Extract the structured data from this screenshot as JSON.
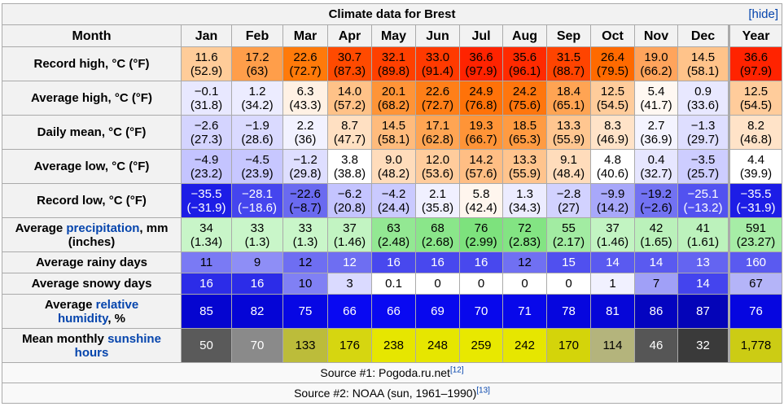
{
  "title": "Climate data for Brest",
  "hide_label": "[hide]",
  "hide_bracket_open": "[",
  "hide_text": "hide",
  "hide_bracket_close": "]",
  "header": {
    "month_label": "Month",
    "months": [
      "Jan",
      "Feb",
      "Mar",
      "Apr",
      "May",
      "Jun",
      "Jul",
      "Aug",
      "Sep",
      "Oct",
      "Nov",
      "Dec"
    ],
    "year_label": "Year"
  },
  "rows": {
    "record_high": {
      "label": "Record high, °C (°F)",
      "values": [
        {
          "c": "11.6",
          "f": "(52.9)",
          "bg": "#ffcc99",
          "fg": "#000000"
        },
        {
          "c": "17.2",
          "f": "(63)",
          "bg": "#ff9e4a",
          "fg": "#000000"
        },
        {
          "c": "22.6",
          "f": "(72.7)",
          "bg": "#ff7a0a",
          "fg": "#000000"
        },
        {
          "c": "30.7",
          "f": "(87.3)",
          "bg": "#ff4a00",
          "fg": "#000000"
        },
        {
          "c": "32.1",
          "f": "(89.8)",
          "bg": "#ff4000",
          "fg": "#000000"
        },
        {
          "c": "33.0",
          "f": "(91.4)",
          "bg": "#ff3a00",
          "fg": "#000000"
        },
        {
          "c": "36.6",
          "f": "(97.9)",
          "bg": "#ff2300",
          "fg": "#000000"
        },
        {
          "c": "35.6",
          "f": "(96.1)",
          "bg": "#ff2a00",
          "fg": "#000000"
        },
        {
          "c": "31.5",
          "f": "(88.7)",
          "bg": "#ff4400",
          "fg": "#000000"
        },
        {
          "c": "26.4",
          "f": "(79.5)",
          "bg": "#ff6a00",
          "fg": "#000000"
        },
        {
          "c": "19.0",
          "f": "(66.2)",
          "bg": "#ffa45c",
          "fg": "#000000"
        },
        {
          "c": "14.5",
          "f": "(58.1)",
          "bg": "#ffc38a",
          "fg": "#000000"
        }
      ],
      "year": {
        "c": "36.6",
        "f": "(97.9)",
        "bg": "#ff2300",
        "fg": "#000000"
      }
    },
    "average_high": {
      "label": "Average high, °C (°F)",
      "values": [
        {
          "c": "−0.1",
          "f": "(31.8)",
          "bg": "#e8e8ff",
          "fg": "#000000"
        },
        {
          "c": "1.2",
          "f": "(34.2)",
          "bg": "#ececff",
          "fg": "#000000"
        },
        {
          "c": "6.3",
          "f": "(43.3)",
          "bg": "#fff1e4",
          "fg": "#000000"
        },
        {
          "c": "14.0",
          "f": "(57.2)",
          "bg": "#ffc288",
          "fg": "#000000"
        },
        {
          "c": "20.1",
          "f": "(68.2)",
          "bg": "#ff9437",
          "fg": "#000000"
        },
        {
          "c": "22.6",
          "f": "(72.7)",
          "bg": "#ff7f18",
          "fg": "#000000"
        },
        {
          "c": "24.9",
          "f": "(76.8)",
          "bg": "#ff7209",
          "fg": "#000000"
        },
        {
          "c": "24.2",
          "f": "(75.6)",
          "bg": "#ff760e",
          "fg": "#000000"
        },
        {
          "c": "18.4",
          "f": "(65.1)",
          "bg": "#ffa453",
          "fg": "#000000"
        },
        {
          "c": "12.5",
          "f": "(54.5)",
          "bg": "#ffcc9b",
          "fg": "#000000"
        },
        {
          "c": "5.4",
          "f": "(41.7)",
          "bg": "#fff8f2",
          "fg": "#000000"
        },
        {
          "c": "0.9",
          "f": "(33.6)",
          "bg": "#e8e8ff",
          "fg": "#000000"
        }
      ],
      "year": {
        "c": "12.5",
        "f": "(54.5)",
        "bg": "#ffcc9b",
        "fg": "#000000"
      }
    },
    "daily_mean": {
      "label": "Daily mean, °C (°F)",
      "values": [
        {
          "c": "−2.6",
          "f": "(27.3)",
          "bg": "#d4d4ff",
          "fg": "#000000"
        },
        {
          "c": "−1.9",
          "f": "(28.6)",
          "bg": "#dadaff",
          "fg": "#000000"
        },
        {
          "c": "2.2",
          "f": "(36)",
          "bg": "#f2f2ff",
          "fg": "#000000"
        },
        {
          "c": "8.7",
          "f": "(47.7)",
          "bg": "#ffe0c2",
          "fg": "#000000"
        },
        {
          "c": "14.5",
          "f": "(58.1)",
          "bg": "#ffbb7c",
          "fg": "#000000"
        },
        {
          "c": "17.1",
          "f": "(62.8)",
          "bg": "#ffa553",
          "fg": "#000000"
        },
        {
          "c": "19.3",
          "f": "(66.7)",
          "bg": "#ff9437",
          "fg": "#000000"
        },
        {
          "c": "18.5",
          "f": "(65.3)",
          "bg": "#ff9b42",
          "fg": "#000000"
        },
        {
          "c": "13.3",
          "f": "(55.9)",
          "bg": "#ffc690",
          "fg": "#000000"
        },
        {
          "c": "8.3",
          "f": "(46.9)",
          "bg": "#ffe3c8",
          "fg": "#000000"
        },
        {
          "c": "2.7",
          "f": "(36.9)",
          "bg": "#f4f4ff",
          "fg": "#000000"
        },
        {
          "c": "−1.3",
          "f": "(29.7)",
          "bg": "#dedeff",
          "fg": "#000000"
        }
      ],
      "year": {
        "c": "8.2",
        "f": "(46.8)",
        "bg": "#ffe3c8",
        "fg": "#000000"
      }
    },
    "average_low": {
      "label": "Average low, °C (°F)",
      "values": [
        {
          "c": "−4.9",
          "f": "(23.2)",
          "bg": "#c4c4ff",
          "fg": "#000000"
        },
        {
          "c": "−4.5",
          "f": "(23.9)",
          "bg": "#c7c7ff",
          "fg": "#000000"
        },
        {
          "c": "−1.2",
          "f": "(29.8)",
          "bg": "#dedeff",
          "fg": "#000000"
        },
        {
          "c": "3.8",
          "f": "(38.8)",
          "bg": "#ffffff",
          "fg": "#000000"
        },
        {
          "c": "9.0",
          "f": "(48.2)",
          "bg": "#ffdcbb",
          "fg": "#000000"
        },
        {
          "c": "12.0",
          "f": "(53.6)",
          "bg": "#ffcc9c",
          "fg": "#000000"
        },
        {
          "c": "14.2",
          "f": "(57.6)",
          "bg": "#ffbe84",
          "fg": "#000000"
        },
        {
          "c": "13.3",
          "f": "(55.9)",
          "bg": "#ffc48d",
          "fg": "#000000"
        },
        {
          "c": "9.1",
          "f": "(48.4)",
          "bg": "#ffdcbb",
          "fg": "#000000"
        },
        {
          "c": "4.8",
          "f": "(40.6)",
          "bg": "#ffffff",
          "fg": "#000000"
        },
        {
          "c": "0.4",
          "f": "(32.7)",
          "bg": "#e6e6ff",
          "fg": "#000000"
        },
        {
          "c": "−3.5",
          "f": "(25.7)",
          "bg": "#cdcdff",
          "fg": "#000000"
        }
      ],
      "year": {
        "c": "4.4",
        "f": "(39.9)",
        "bg": "#ffffff",
        "fg": "#000000"
      }
    },
    "record_low": {
      "label": "Record low, °C (°F)",
      "values": [
        {
          "c": "−35.5",
          "f": "(−31.9)",
          "bg": "#1d1de6",
          "fg": "#ffffff"
        },
        {
          "c": "−28.1",
          "f": "(−18.6)",
          "bg": "#4545ee",
          "fg": "#ffffff"
        },
        {
          "c": "−22.6",
          "f": "(−8.7)",
          "bg": "#6a6af0",
          "fg": "#000000"
        },
        {
          "c": "−6.2",
          "f": "(20.8)",
          "bg": "#c4c4ff",
          "fg": "#000000"
        },
        {
          "c": "−4.2",
          "f": "(24.4)",
          "bg": "#cacaff",
          "fg": "#000000"
        },
        {
          "c": "2.1",
          "f": "(35.8)",
          "bg": "#f0f0ff",
          "fg": "#000000"
        },
        {
          "c": "5.8",
          "f": "(42.4)",
          "bg": "#fff6ee",
          "fg": "#000000"
        },
        {
          "c": "1.3",
          "f": "(34.3)",
          "bg": "#ececff",
          "fg": "#000000"
        },
        {
          "c": "−2.8",
          "f": "(27)",
          "bg": "#d2d2ff",
          "fg": "#000000"
        },
        {
          "c": "−9.9",
          "f": "(14.2)",
          "bg": "#a8a8fa",
          "fg": "#000000"
        },
        {
          "c": "−19.2",
          "f": "(−2.6)",
          "bg": "#7272f2",
          "fg": "#000000"
        },
        {
          "c": "−25.1",
          "f": "(−13.2)",
          "bg": "#5252f0",
          "fg": "#ffffff"
        }
      ],
      "year": {
        "c": "−35.5",
        "f": "(−31.9)",
        "bg": "#1d1de6",
        "fg": "#ffffff"
      }
    },
    "precipitation": {
      "label_prefix": "Average ",
      "label_link": "precipitation",
      "label_suffix": ", mm",
      "label_line2": "(inches)",
      "values": [
        {
          "mm": "34",
          "in": "(1.34)",
          "bg": "#c8f5c8"
        },
        {
          "mm": "33",
          "in": "(1.3)",
          "bg": "#c9f6c9"
        },
        {
          "mm": "33",
          "in": "(1.3)",
          "bg": "#c9f6c9"
        },
        {
          "mm": "37",
          "in": "(1.46)",
          "bg": "#c2f4c2"
        },
        {
          "mm": "63",
          "in": "(2.48)",
          "bg": "#93e893"
        },
        {
          "mm": "68",
          "in": "(2.68)",
          "bg": "#8ae68a"
        },
        {
          "mm": "76",
          "in": "(2.99)",
          "bg": "#7de27d"
        },
        {
          "mm": "72",
          "in": "(2.83)",
          "bg": "#83e483"
        },
        {
          "mm": "55",
          "in": "(2.17)",
          "bg": "#a2eca2"
        },
        {
          "mm": "37",
          "in": "(1.46)",
          "bg": "#c2f4c2"
        },
        {
          "mm": "42",
          "in": "(1.65)",
          "bg": "#baf1ba"
        },
        {
          "mm": "41",
          "in": "(1.61)",
          "bg": "#bcf2bc"
        }
      ],
      "year": {
        "mm": "591",
        "in": "(23.27)",
        "bg": "#a6eda6"
      }
    },
    "rainy_days": {
      "label": "Average rainy days",
      "values": [
        {
          "v": "11",
          "bg": "#7a7af4",
          "fg": "#000000"
        },
        {
          "v": "9",
          "bg": "#8e8ef6",
          "fg": "#000000"
        },
        {
          "v": "12",
          "bg": "#6e6ef2",
          "fg": "#000000"
        },
        {
          "v": "12",
          "bg": "#6e6ef2",
          "fg": "#ffffff"
        },
        {
          "v": "16",
          "bg": "#4848ee",
          "fg": "#ffffff"
        },
        {
          "v": "16",
          "bg": "#4848ee",
          "fg": "#ffffff"
        },
        {
          "v": "16",
          "bg": "#4848ee",
          "fg": "#ffffff"
        },
        {
          "v": "12",
          "bg": "#7070f2",
          "fg": "#000000"
        },
        {
          "v": "15",
          "bg": "#5050ef",
          "fg": "#ffffff"
        },
        {
          "v": "14",
          "bg": "#5a5af0",
          "fg": "#ffffff"
        },
        {
          "v": "14",
          "bg": "#5a5af0",
          "fg": "#ffffff"
        },
        {
          "v": "13",
          "bg": "#6464f1",
          "fg": "#ffffff"
        }
      ],
      "year": {
        "v": "160",
        "bg": "#5a5af0",
        "fg": "#ffffff"
      }
    },
    "snowy_days": {
      "label": "Average snowy days",
      "values": [
        {
          "v": "16",
          "bg": "#2c2ce8",
          "fg": "#ffffff"
        },
        {
          "v": "16",
          "bg": "#2c2ce8",
          "fg": "#ffffff"
        },
        {
          "v": "10",
          "bg": "#8080f4",
          "fg": "#000000"
        },
        {
          "v": "3",
          "bg": "#dadaff",
          "fg": "#000000"
        },
        {
          "v": "0.1",
          "bg": "#ffffff",
          "fg": "#000000"
        },
        {
          "v": "0",
          "bg": "#ffffff",
          "fg": "#000000"
        },
        {
          "v": "0",
          "bg": "#ffffff",
          "fg": "#000000"
        },
        {
          "v": "0",
          "bg": "#ffffff",
          "fg": "#000000"
        },
        {
          "v": "0",
          "bg": "#ffffff",
          "fg": "#000000"
        },
        {
          "v": "1",
          "bg": "#f1f1ff",
          "fg": "#000000"
        },
        {
          "v": "7",
          "bg": "#a0a0f7",
          "fg": "#000000"
        },
        {
          "v": "14",
          "bg": "#4444ee",
          "fg": "#ffffff"
        }
      ],
      "year": {
        "v": "67",
        "bg": "#b4b4f8",
        "fg": "#000000"
      }
    },
    "humidity": {
      "label_prefix": "Average ",
      "label_link1": "relative",
      "label_link2": "humidity",
      "label_suffix": ", %",
      "values": [
        {
          "v": "85",
          "bg": "#0505d0"
        },
        {
          "v": "82",
          "bg": "#0505d6"
        },
        {
          "v": "75",
          "bg": "#0707e4"
        },
        {
          "v": "66",
          "bg": "#0909f2"
        },
        {
          "v": "66",
          "bg": "#0909f2"
        },
        {
          "v": "69",
          "bg": "#0808ee"
        },
        {
          "v": "70",
          "bg": "#0808ec"
        },
        {
          "v": "71",
          "bg": "#0808ea"
        },
        {
          "v": "78",
          "bg": "#0606de"
        },
        {
          "v": "81",
          "bg": "#0606d8"
        },
        {
          "v": "86",
          "bg": "#0404c0"
        },
        {
          "v": "87",
          "bg": "#0404b8"
        }
      ],
      "year": {
        "v": "76",
        "bg": "#0606e0"
      }
    },
    "sunshine": {
      "label_prefix": "Mean monthly ",
      "label_link1": "sunshine",
      "label_link2": "hours",
      "values": [
        {
          "v": "50",
          "bg": "#5a5a5a",
          "fg": "#ffffff"
        },
        {
          "v": "70",
          "bg": "#8a8a8a",
          "fg": "#ffffff"
        },
        {
          "v": "133",
          "bg": "#bcbc3a",
          "fg": "#000000"
        },
        {
          "v": "176",
          "bg": "#d6d610",
          "fg": "#000000"
        },
        {
          "v": "238",
          "bg": "#e6e600",
          "fg": "#000000"
        },
        {
          "v": "248",
          "bg": "#e6e600",
          "fg": "#000000"
        },
        {
          "v": "259",
          "bg": "#e8e800",
          "fg": "#000000"
        },
        {
          "v": "242",
          "bg": "#e6e600",
          "fg": "#000000"
        },
        {
          "v": "170",
          "bg": "#d4d40a",
          "fg": "#000000"
        },
        {
          "v": "114",
          "bg": "#b4b47c",
          "fg": "#000000"
        },
        {
          "v": "46",
          "bg": "#565656",
          "fg": "#ffffff"
        },
        {
          "v": "32",
          "bg": "#3a3a3a",
          "fg": "#ffffff"
        }
      ],
      "year": {
        "v": "1,778",
        "bg": "#cccc14",
        "fg": "#000000"
      }
    }
  },
  "sources": [
    {
      "text": "Source #1: Pogoda.ru.net",
      "ref": "[12]"
    },
    {
      "text": "Source #2: NOAA (sun, 1961–1990)",
      "ref": "[13]"
    }
  ]
}
